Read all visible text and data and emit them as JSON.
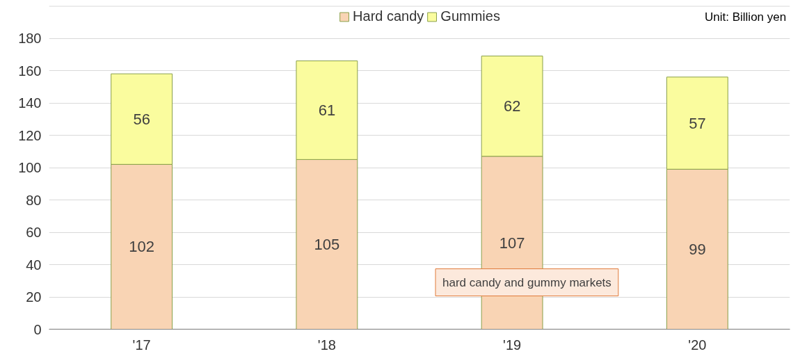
{
  "chart_data": {
    "type": "bar",
    "stacked": true,
    "categories": [
      "'17",
      "'18",
      "'19",
      "'20"
    ],
    "series": [
      {
        "name": "Hard candy",
        "color": "#f9d4b4",
        "values": [
          102,
          105,
          107,
          99
        ]
      },
      {
        "name": "Gummies",
        "color": "#fafc9e",
        "values": [
          56,
          61,
          62,
          57
        ]
      }
    ],
    "ylim": [
      0,
      200
    ],
    "yticks": [
      0,
      20,
      40,
      60,
      80,
      100,
      120,
      140,
      160,
      180,
      {
        "value": 200,
        "label": null
      }
    ],
    "grid": "y",
    "legend": "top",
    "data_labels": true,
    "annotations": [
      "Unit: Billion yen",
      "hard candy and gummy markets"
    ]
  }
}
